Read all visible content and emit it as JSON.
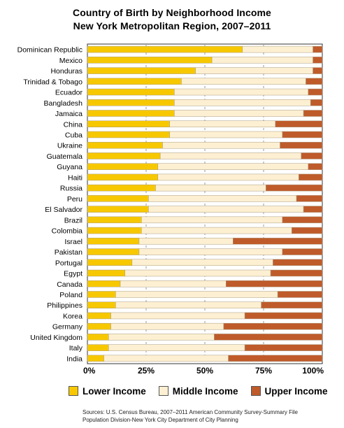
{
  "chart_data": {
    "type": "bar",
    "orientation": "horizontal",
    "stacked": true,
    "title": "Country of Birth by Neighborhood Income",
    "subtitle": "New York Metropolitan Region, 2007–2011",
    "categories": [
      "Dominican Republic",
      "Mexico",
      "Honduras",
      "Trinidad & Tobago",
      "Ecuador",
      "Bangladesh",
      "Jamaica",
      "China",
      "Cuba",
      "Ukraine",
      "Guatemala",
      "Guyana",
      "Haiti",
      "Russia",
      "Peru",
      "El Salvador",
      "Brazil",
      "Colombia",
      "Israel",
      "Pakistan",
      "Portugal",
      "Egypt",
      "Canada",
      "Poland",
      "Philippines",
      "Korea",
      "Germany",
      "United Kingdom",
      "Italy",
      "India"
    ],
    "series": [
      {
        "name": "Lower Income",
        "color": "#f7c800",
        "values": [
          66,
          53,
          46,
          40,
          37,
          37,
          37,
          35,
          35,
          32,
          31,
          30,
          30,
          29,
          26,
          26,
          23,
          23,
          22,
          22,
          19,
          16,
          14,
          12,
          12,
          10,
          10,
          9,
          9,
          7
        ]
      },
      {
        "name": "Middle Income",
        "color": "#fdf0d2",
        "values": [
          30,
          43,
          50,
          53,
          57,
          58,
          55,
          45,
          48,
          50,
          60,
          64,
          60,
          47,
          63,
          66,
          60,
          64,
          40,
          61,
          60,
          62,
          45,
          69,
          62,
          57,
          48,
          45,
          58,
          53
        ]
      },
      {
        "name": "Upper Income",
        "color": "#bf5b2a",
        "values": [
          4,
          4,
          4,
          7,
          6,
          5,
          8,
          20,
          17,
          18,
          9,
          6,
          10,
          24,
          11,
          8,
          17,
          13,
          38,
          17,
          21,
          22,
          41,
          19,
          26,
          33,
          42,
          46,
          33,
          40
        ]
      }
    ],
    "xlim": [
      0,
      100
    ],
    "xticks": [
      "0%",
      "25%",
      "50%",
      "75%",
      "100%"
    ],
    "grid": true,
    "legend_position": "bottom"
  },
  "sources": {
    "line1": "Sources: U.S. Census Bureau, 2007–2011 American Community Survey-Summary File",
    "line2": "Population Division-New York City Department of City Planning"
  }
}
